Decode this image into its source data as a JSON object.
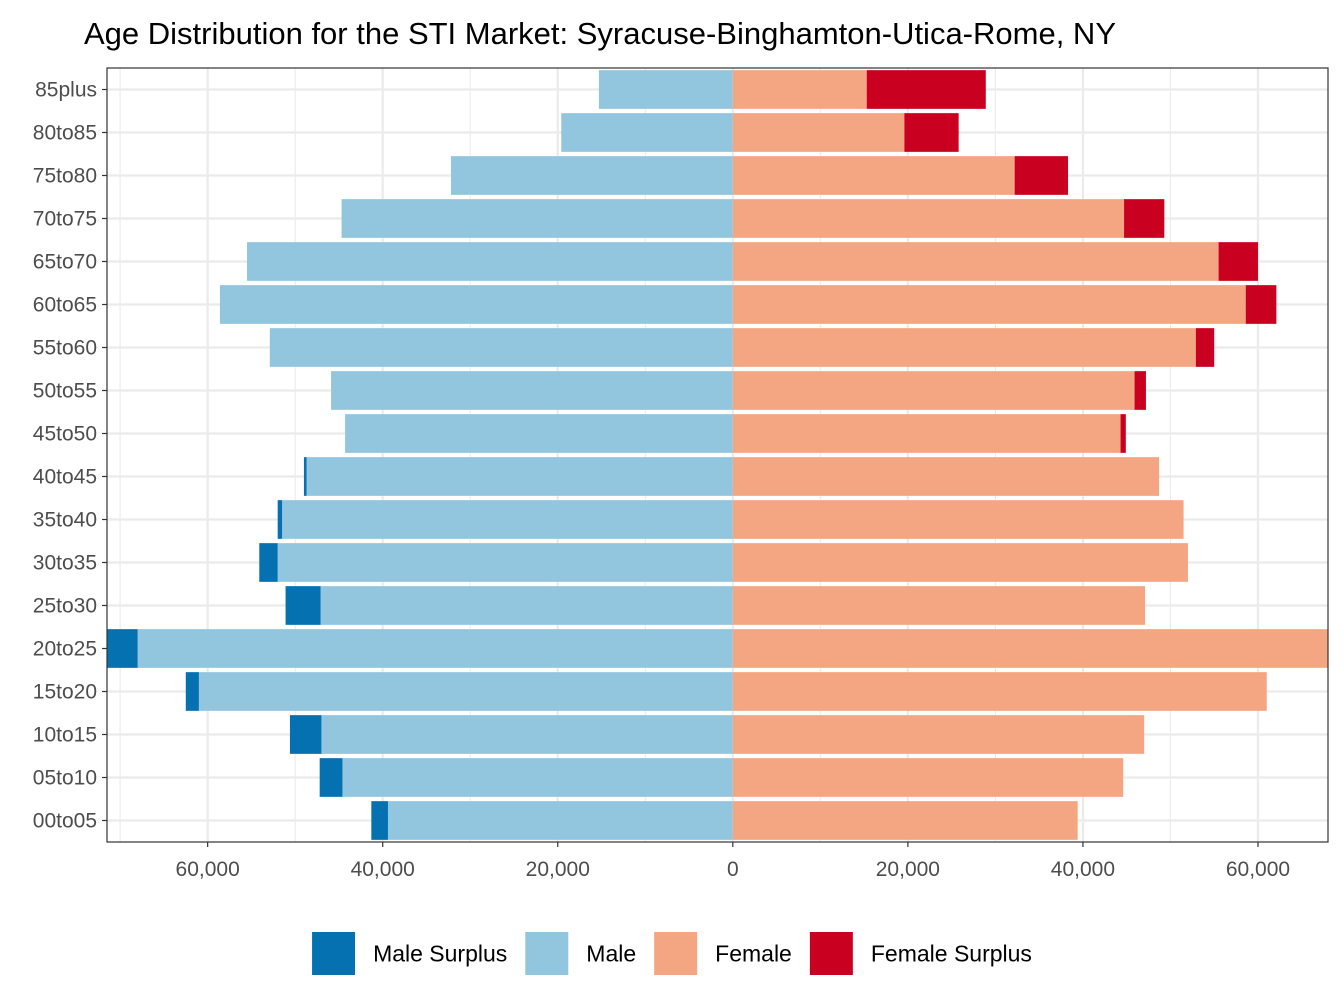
{
  "chart_data": {
    "type": "bar",
    "orientation": "horizontal",
    "title": "Age Distribution for the STI Market: Syracuse-Binghamton-Utica-Rome, NY",
    "xlabel": "",
    "ylabel": "",
    "xlim": [
      -71500,
      68000
    ],
    "x_ticks": [
      -60000,
      -40000,
      -20000,
      0,
      20000,
      40000,
      60000
    ],
    "x_tick_labels": [
      "60,000",
      "40,000",
      "20,000",
      "0",
      "20,000",
      "40,000",
      "60,000"
    ],
    "grid": true,
    "legend_position": "bottom",
    "categories": [
      "00to05",
      "05to10",
      "10to15",
      "15to20",
      "20to25",
      "25to30",
      "30to35",
      "35to40",
      "40to45",
      "45to50",
      "50to55",
      "55to60",
      "60to65",
      "65to70",
      "70to75",
      "75to80",
      "80to85",
      "85plus"
    ],
    "series": [
      {
        "name": "Male Surplus",
        "color": "#0571b0",
        "side": "left",
        "values": [
          1900,
          2600,
          3600,
          1500,
          3500,
          4000,
          2100,
          500,
          300,
          0,
          0,
          0,
          0,
          0,
          0,
          0,
          0,
          0
        ]
      },
      {
        "name": "Male",
        "color": "#92c5de",
        "side": "left",
        "values": [
          39400,
          44600,
          47000,
          61000,
          68000,
          47100,
          52000,
          51500,
          48700,
          44300,
          45900,
          52900,
          58600,
          55500,
          44700,
          32200,
          19600,
          15300
        ]
      },
      {
        "name": "Female",
        "color": "#f4a582",
        "side": "right",
        "values": [
          39400,
          44600,
          47000,
          61000,
          68000,
          47100,
          52000,
          51500,
          48700,
          44300,
          45900,
          52900,
          58600,
          55500,
          44700,
          32200,
          19600,
          15300
        ]
      },
      {
        "name": "Female Surplus",
        "color": "#ca0020",
        "side": "right",
        "values": [
          0,
          0,
          0,
          0,
          0,
          0,
          0,
          0,
          0,
          600,
          1300,
          2100,
          3500,
          4500,
          4600,
          6100,
          6200,
          13600
        ]
      }
    ]
  }
}
